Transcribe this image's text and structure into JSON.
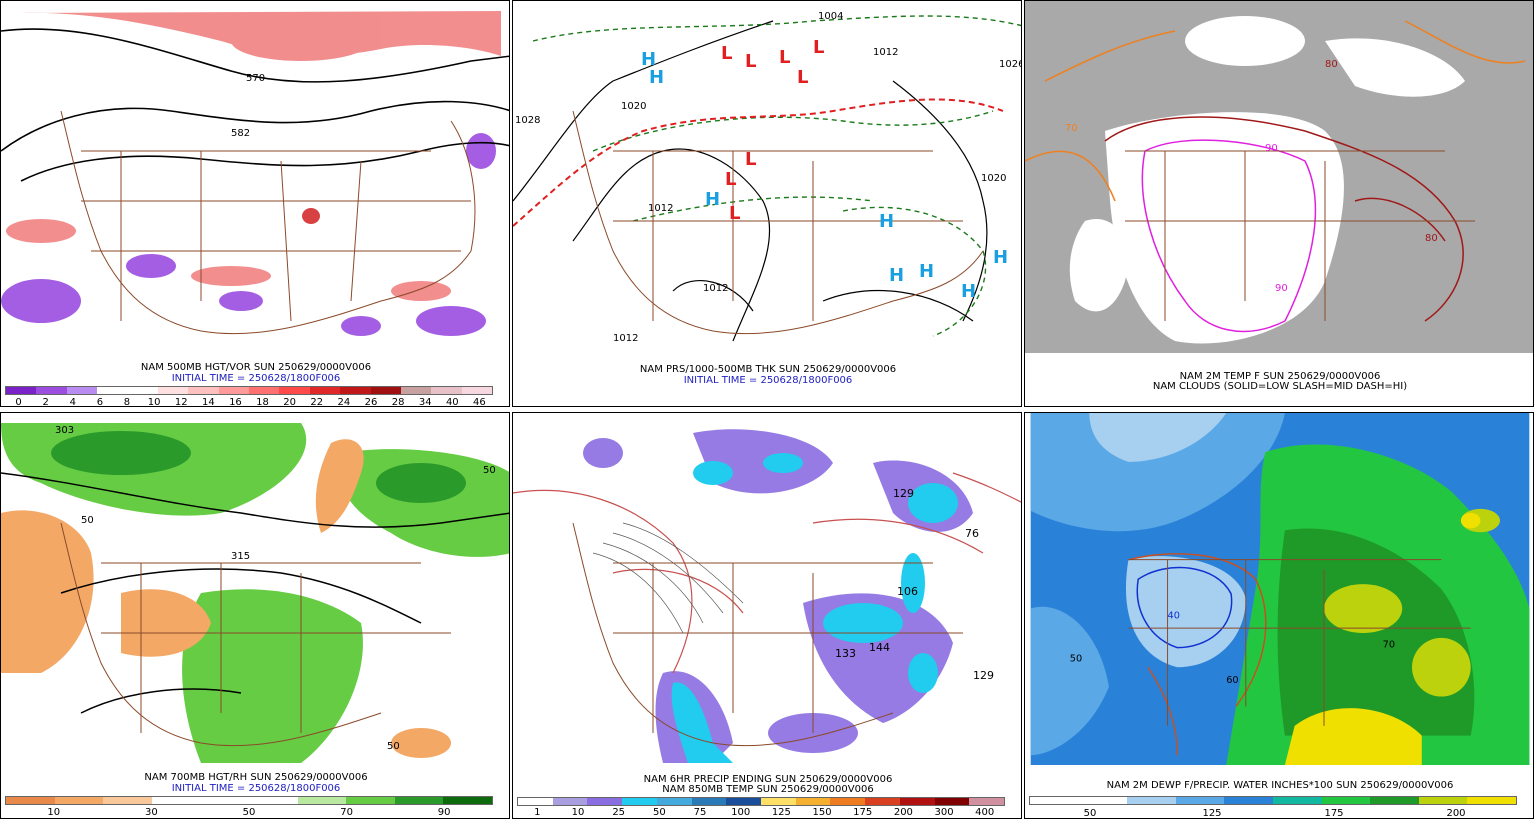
{
  "panels": [
    {
      "caption1": "NAM 500MB HGT/VOR SUN 250629/0000V006",
      "caption2": "INITIAL TIME = 250628/1800F006",
      "colorbar": [
        "#7a22c8",
        "#9b4de0",
        "#b88cf0",
        "#ffffff",
        "#ffffff",
        "#ffe0e0",
        "#ffc0c0",
        "#ff9a9a",
        "#ff7070",
        "#ff4a4a",
        "#e02828",
        "#c01818",
        "#a01010",
        "#c7a0a0",
        "#e8c0c8",
        "#f8d8e0"
      ],
      "ticks": [
        "0",
        "2",
        "4",
        "6",
        "8",
        "10",
        "12",
        "14",
        "16",
        "18",
        "20",
        "22",
        "24",
        "26",
        "28",
        "34",
        "40",
        "46"
      ],
      "contour_labels": [
        "570",
        "582"
      ]
    },
    {
      "caption1": "NAM PRS/1000-500MB THK SUN 250629/0000V006",
      "caption2": "INITIAL TIME = 250628/1800F006",
      "pressure_labels": [
        "1004",
        "1012",
        "1020",
        "1028",
        "1026"
      ],
      "highs": [
        "H",
        "H",
        "H",
        "H",
        "H",
        "H",
        "H",
        "H"
      ],
      "lows": [
        "L",
        "L",
        "L",
        "L",
        "L",
        "L",
        "L",
        "L"
      ]
    },
    {
      "caption1": "NAM 2M TEMP F SUN 250629/0000V006",
      "caption2": "NAM CLOUDS (SOLID=LOW SLASH=MID DASH=HI)",
      "temp_labels": [
        "70",
        "80",
        "90"
      ]
    },
    {
      "caption1": "NAM 700MB HGT/RH SUN 250629/0000V006",
      "caption2": "INITIAL TIME = 250628/1800F006",
      "colorbar": [
        "#e8894a",
        "#f3a866",
        "#f8c89a",
        "#ffffff",
        "#ffffff",
        "#ffffff",
        "#b9e9a0",
        "#66cc44",
        "#2a9a2a",
        "#0d6b0d"
      ],
      "ticks": [
        "10",
        "30",
        "50",
        "70",
        "90"
      ],
      "contour_labels": [
        "315",
        "303",
        "50"
      ]
    },
    {
      "caption1": "NAM 6HR PRECIP ENDING SUN 250629/0000V006",
      "caption2": "NAM 850MB TEMP SUN 250629/0000V006",
      "colorbar": [
        "#ffffff",
        "#a89ee0",
        "#8a6de0",
        "#22ccee",
        "#44aadd",
        "#2a7ab8",
        "#1a4e9a",
        "#ffe066",
        "#f5b030",
        "#ef7b20",
        "#d84020",
        "#b01010",
        "#800000",
        "#d090a0"
      ],
      "ticks": [
        "1",
        "10",
        "25",
        "50",
        "75",
        "100",
        "125",
        "150",
        "175",
        "200",
        "300",
        "400"
      ],
      "storm_labels": [
        "129",
        "76",
        "106",
        "144",
        "133",
        "129"
      ]
    },
    {
      "caption1": "NAM 2M DEWP F/PRECIP. WATER INCHES*100 SUN 250629/0000V006",
      "caption2": "",
      "colorbar": [
        "#ffffff",
        "#ffffff",
        "#a6cff0",
        "#5aa9e6",
        "#2a82d8",
        "#13b8a0",
        "#22c640",
        "#1f9a28",
        "#bcd20c",
        "#f0e000"
      ],
      "ticks": [
        "50",
        "125",
        "175",
        "200"
      ],
      "dew_labels": [
        "50",
        "60",
        "70",
        "40"
      ]
    }
  ]
}
